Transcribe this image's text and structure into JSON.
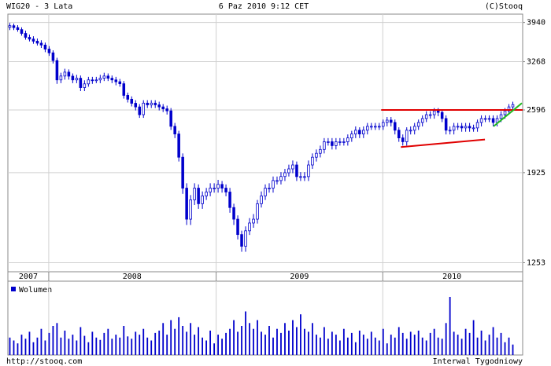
{
  "chart_data": {
    "type": "candlestick",
    "title": "WIG20 - 3 Lata",
    "date": "6 Paz 2010 9:12 CET",
    "credit": "(C)Stooq",
    "source": "http://stooq.com",
    "interval": "Interwal Tygodniowy",
    "volume_label": "Wolumen",
    "color": "#0000cc",
    "log_scale": true,
    "grid": true,
    "ylim": [
      1200,
      4100
    ],
    "yticks": [
      3940,
      3268,
      2596,
      1925,
      1253
    ],
    "xlim": [
      -0.5,
      130.5
    ],
    "xticks": [
      {
        "value": 4.7,
        "label": "2007"
      },
      {
        "value": 31.1,
        "label": "2008"
      },
      {
        "value": 73.7,
        "label": "2009"
      },
      {
        "value": 112.5,
        "label": "2010"
      }
    ],
    "xgrid": [
      9.9,
      52.5,
      94.9
    ],
    "open": [
      3850,
      3880,
      3845,
      3809,
      3740,
      3671,
      3640,
      3604,
      3570,
      3538,
      3470,
      3409,
      3286,
      2996,
      3052,
      3109,
      3050,
      2996,
      3020,
      2888,
      2940,
      2996,
      2990,
      2996,
      3020,
      3052,
      3020,
      2996,
      2970,
      2942,
      2783,
      2732,
      2680,
      2634,
      2538,
      2682,
      2660,
      2682,
      2660,
      2634,
      2610,
      2585,
      2401,
      2315,
      2072,
      1788,
      1542,
      1691,
      1788,
      1660,
      1723,
      1755,
      1788,
      1788,
      1820,
      1788,
      1755,
      1630,
      1542,
      1433,
      1355,
      1459,
      1514,
      1542,
      1660,
      1723,
      1788,
      1788,
      1854,
      1854,
      1890,
      1924,
      1960,
      1997,
      1889,
      1889,
      1889,
      1997,
      2072,
      2111,
      2150,
      2231,
      2231,
      2190,
      2231,
      2231,
      2231,
      2272,
      2315,
      2357,
      2315,
      2357,
      2401,
      2401,
      2401,
      2401,
      2446,
      2473,
      2446,
      2357,
      2272,
      2231,
      2357,
      2357,
      2401,
      2446,
      2492,
      2538,
      2538,
      2585,
      2566,
      2492,
      2357,
      2357,
      2401,
      2401,
      2383,
      2401,
      2383,
      2383,
      2446,
      2492,
      2492,
      2492,
      2446,
      2492,
      2538,
      2585,
      2634
    ],
    "close": [
      3880,
      3845,
      3809,
      3740,
      3671,
      3640,
      3604,
      3570,
      3538,
      3470,
      3409,
      3286,
      2996,
      3052,
      3109,
      3050,
      2996,
      3020,
      2888,
      2940,
      2996,
      2990,
      2996,
      3020,
      3052,
      3020,
      2996,
      2970,
      2942,
      2783,
      2732,
      2680,
      2634,
      2538,
      2682,
      2660,
      2682,
      2660,
      2634,
      2610,
      2585,
      2401,
      2315,
      2072,
      1788,
      1542,
      1691,
      1788,
      1660,
      1723,
      1755,
      1788,
      1788,
      1820,
      1788,
      1755,
      1630,
      1542,
      1433,
      1355,
      1459,
      1514,
      1542,
      1660,
      1723,
      1788,
      1788,
      1854,
      1854,
      1890,
      1924,
      1960,
      1997,
      1889,
      1889,
      1889,
      1997,
      2072,
      2111,
      2150,
      2231,
      2231,
      2190,
      2231,
      2231,
      2231,
      2272,
      2315,
      2357,
      2315,
      2357,
      2401,
      2401,
      2401,
      2401,
      2446,
      2473,
      2446,
      2357,
      2272,
      2231,
      2357,
      2357,
      2401,
      2446,
      2492,
      2538,
      2538,
      2585,
      2566,
      2492,
      2357,
      2357,
      2401,
      2401,
      2383,
      2401,
      2383,
      2383,
      2446,
      2492,
      2492,
      2492,
      2446,
      2492,
      2538,
      2585,
      2634,
      2663
    ],
    "high": [
      3930,
      3920,
      3890,
      3850,
      3790,
      3720,
      3690,
      3650,
      3620,
      3580,
      3520,
      3450,
      3330,
      3100,
      3160,
      3150,
      3090,
      3070,
      3060,
      2990,
      3040,
      3040,
      3040,
      3070,
      3100,
      3090,
      3060,
      3040,
      3010,
      2980,
      2820,
      2770,
      2720,
      2670,
      2720,
      2720,
      2720,
      2720,
      2700,
      2670,
      2650,
      2620,
      2440,
      2350,
      2110,
      1830,
      1730,
      1830,
      1820,
      1760,
      1790,
      1830,
      1830,
      1860,
      1850,
      1820,
      1790,
      1660,
      1570,
      1460,
      1490,
      1550,
      1580,
      1690,
      1760,
      1820,
      1830,
      1890,
      1890,
      1930,
      1960,
      2000,
      2040,
      2030,
      1930,
      1930,
      2040,
      2110,
      2150,
      2190,
      2270,
      2270,
      2270,
      2270,
      2270,
      2270,
      2310,
      2350,
      2400,
      2390,
      2400,
      2440,
      2440,
      2440,
      2440,
      2480,
      2510,
      2510,
      2480,
      2390,
      2310,
      2390,
      2400,
      2440,
      2480,
      2530,
      2580,
      2580,
      2620,
      2620,
      2600,
      2530,
      2400,
      2440,
      2440,
      2440,
      2440,
      2440,
      2420,
      2480,
      2530,
      2530,
      2530,
      2530,
      2530,
      2580,
      2620,
      2670,
      2700
    ],
    "low": [
      3800,
      3800,
      3770,
      3700,
      3630,
      3600,
      3560,
      3530,
      3490,
      3420,
      3360,
      3240,
      2940,
      2950,
      3000,
      3000,
      2950,
      2950,
      2840,
      2840,
      2900,
      2940,
      2950,
      2950,
      2980,
      2980,
      2950,
      2920,
      2900,
      2740,
      2690,
      2640,
      2590,
      2500,
      2500,
      2620,
      2620,
      2620,
      2590,
      2570,
      2540,
      2360,
      2270,
      2030,
      1740,
      1500,
      1500,
      1650,
      1620,
      1620,
      1690,
      1720,
      1750,
      1750,
      1750,
      1720,
      1590,
      1500,
      1400,
      1320,
      1320,
      1430,
      1480,
      1510,
      1630,
      1690,
      1750,
      1750,
      1820,
      1820,
      1850,
      1890,
      1920,
      1850,
      1850,
      1850,
      1850,
      1960,
      2030,
      2070,
      2110,
      2190,
      2150,
      2150,
      2190,
      2190,
      2190,
      2230,
      2270,
      2270,
      2270,
      2310,
      2360,
      2360,
      2360,
      2360,
      2400,
      2400,
      2310,
      2230,
      2190,
      2190,
      2310,
      2310,
      2360,
      2400,
      2450,
      2490,
      2490,
      2520,
      2450,
      2310,
      2310,
      2310,
      2360,
      2340,
      2340,
      2340,
      2340,
      2340,
      2400,
      2450,
      2450,
      2400,
      2400,
      2450,
      2490,
      2540,
      2600
    ],
    "vlim": [
      0,
      100
    ],
    "volume": [
      30,
      25,
      20,
      35,
      28,
      40,
      22,
      30,
      45,
      25,
      38,
      50,
      55,
      30,
      42,
      28,
      35,
      25,
      48,
      33,
      22,
      40,
      30,
      26,
      38,
      45,
      28,
      35,
      30,
      50,
      32,
      28,
      40,
      35,
      45,
      30,
      25,
      38,
      42,
      55,
      35,
      60,
      45,
      65,
      50,
      40,
      55,
      35,
      48,
      30,
      25,
      42,
      20,
      35,
      28,
      38,
      45,
      60,
      40,
      50,
      75,
      55,
      45,
      60,
      40,
      35,
      50,
      30,
      45,
      38,
      55,
      42,
      60,
      48,
      70,
      45,
      40,
      55,
      35,
      30,
      48,
      28,
      40,
      35,
      25,
      45,
      30,
      38,
      22,
      42,
      35,
      28,
      40,
      30,
      25,
      45,
      20,
      35,
      30,
      48,
      38,
      28,
      40,
      35,
      42,
      30,
      25,
      38,
      45,
      30,
      28,
      55,
      100,
      40,
      35,
      28,
      45,
      38,
      60,
      30,
      42,
      25,
      35,
      48,
      30,
      38,
      22,
      30,
      18
    ],
    "trend_lines": [
      {
        "color": "#e00000",
        "x": [
          94.5,
          130.5
        ],
        "values": [
          2596,
          2596
        ]
      },
      {
        "color": "#e00000",
        "x": [
          99.5,
          120.9
        ],
        "values": [
          2175,
          2255
        ]
      },
      {
        "color": "#22bb22",
        "x": [
          123.1,
          130.3
        ],
        "values": [
          2401,
          2682
        ]
      }
    ]
  }
}
